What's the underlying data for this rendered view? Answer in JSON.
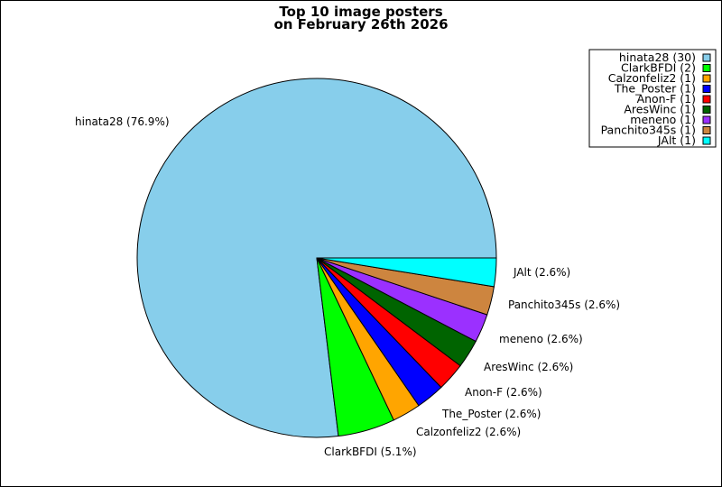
{
  "chart_data": {
    "type": "pie",
    "title": [
      "Top 10 image posters",
      "on February 26th 2026"
    ],
    "legend_position": "top-right",
    "slices": [
      {
        "name": "hinata28",
        "count": 30,
        "percent": 76.9,
        "legend": "hinata28 (30)",
        "label": "hinata28 (76.9%)",
        "color": "#87ceeb"
      },
      {
        "name": "ClarkBFDI",
        "count": 2,
        "percent": 5.1,
        "legend": "ClarkBFDI (2)",
        "label": "ClarkBFDI (5.1%)",
        "color": "#00ff00"
      },
      {
        "name": "Calzonfeliz2",
        "count": 1,
        "percent": 2.6,
        "legend": "Calzonfeliz2 (1)",
        "label": "Calzonfeliz2 (2.6%)",
        "color": "#ffa500"
      },
      {
        "name": "The_Poster",
        "count": 1,
        "percent": 2.6,
        "legend": "The_Poster (1)",
        "label": "The_Poster (2.6%)",
        "color": "#0000ff"
      },
      {
        "name": "Anon-F",
        "count": 1,
        "percent": 2.6,
        "legend": "Anon-F (1)",
        "label": "Anon-F (2.6%)",
        "color": "#ff0000"
      },
      {
        "name": "AresWinc",
        "count": 1,
        "percent": 2.6,
        "legend": "AresWinc (1)",
        "label": "AresWinc (2.6%)",
        "color": "#006400"
      },
      {
        "name": "meneno",
        "count": 1,
        "percent": 2.6,
        "legend": "meneno (1)",
        "label": "meneno (2.6%)",
        "color": "#9b30ff"
      },
      {
        "name": "Panchito345s",
        "count": 1,
        "percent": 2.6,
        "legend": "Panchito345s (1)",
        "label": "Panchito345s (2.6%)",
        "color": "#cd853f"
      },
      {
        "name": "JAlt",
        "count": 1,
        "percent": 2.6,
        "legend": "JAlt (1)",
        "label": "JAlt (2.6%)",
        "color": "#00ffff"
      }
    ]
  }
}
